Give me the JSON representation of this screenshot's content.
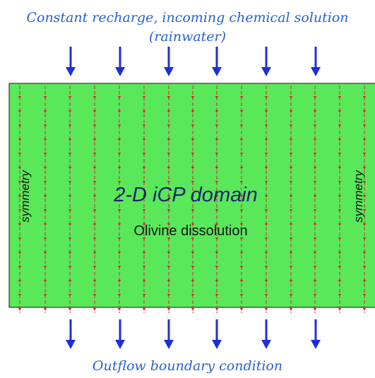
{
  "top_label": {
    "line1": "Constant recharge, incoming chemical solution",
    "line2": "(rainwater)"
  },
  "domain": {
    "title": "2-D iCP domain",
    "subtitle": "Olivine dissolution",
    "left_side_label": "symmetry",
    "right_side_label": "symmetry",
    "fill_color": "#59e85a",
    "streamline_color": "#e0262b"
  },
  "bottom_label": "Outflow boundary condition",
  "arrow_color": "#1f2fd6",
  "inflow_arrow_count": 6,
  "outflow_arrow_count": 6,
  "streamline_count": 15
}
